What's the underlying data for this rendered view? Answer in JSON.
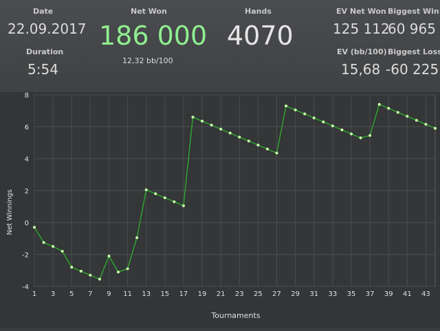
{
  "stats": {
    "date": {
      "label": "Date",
      "value": "22.09.2017"
    },
    "duration": {
      "label": "Duration",
      "value": "5:54"
    },
    "net_won": {
      "label": "Net Won",
      "value": "186 000",
      "sub": "12,32 bb/100"
    },
    "hands": {
      "label": "Hands",
      "value": "4070"
    },
    "ev_net_won": {
      "label": "EV Net Won",
      "value": "125 112"
    },
    "biggest_win": {
      "label": "Biggest Win",
      "value": "60 965"
    },
    "ev_bb100": {
      "label": "EV (bb/100)",
      "value": "15,68"
    },
    "biggest_loss": {
      "label": "Biggest Loss",
      "value": "-60 225"
    }
  },
  "colors": {
    "net_won_value": "#90ee90",
    "line": "#2e9e2e",
    "point": "#ccffaa"
  },
  "chart_data": {
    "type": "line",
    "xlabel": "Tournaments",
    "ylabel": "Net Winnings",
    "xlim": [
      1,
      44
    ],
    "ylim": [
      -4,
      8
    ],
    "xticks": [
      "1",
      "3",
      "5",
      "7",
      "9",
      "11",
      "13",
      "15",
      "17",
      "19",
      "21",
      "23",
      "25",
      "27",
      "29",
      "31",
      "33",
      "35",
      "37",
      "39",
      "41",
      "43"
    ],
    "yticks": [
      "-4",
      "-2",
      "0",
      "2",
      "4",
      "6",
      "8"
    ],
    "grid": true,
    "x": [
      1,
      2,
      3,
      4,
      5,
      6,
      7,
      8,
      9,
      10,
      11,
      12,
      13,
      14,
      15,
      16,
      17,
      18,
      19,
      20,
      21,
      22,
      23,
      24,
      25,
      26,
      27,
      28,
      29,
      30,
      31,
      32,
      33,
      34,
      35,
      36,
      37,
      38,
      39,
      40,
      41,
      42,
      43,
      44
    ],
    "y": [
      -0.3,
      -1.25,
      -1.5,
      -1.8,
      -2.8,
      -3.05,
      -3.3,
      -3.55,
      -2.1,
      -3.1,
      -2.9,
      -0.95,
      2.05,
      1.8,
      1.55,
      1.3,
      1.05,
      6.6,
      6.35,
      6.1,
      5.85,
      5.6,
      5.35,
      5.1,
      4.85,
      4.6,
      4.35,
      7.3,
      7.05,
      6.8,
      6.55,
      6.3,
      6.05,
      5.8,
      5.55,
      5.3,
      5.45,
      7.4,
      7.15,
      6.9,
      6.65,
      6.4,
      6.15,
      5.9
    ]
  }
}
